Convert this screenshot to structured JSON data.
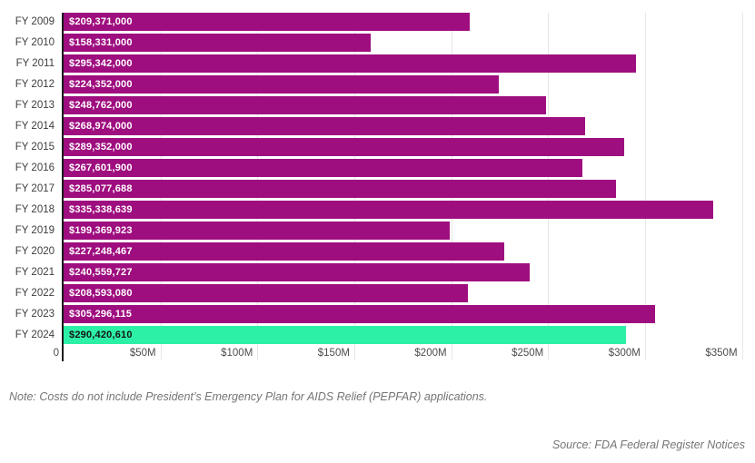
{
  "colors": {
    "bar": "#9E0E7F",
    "highlight": "#2DF0A7",
    "axis": "#1a1a1a",
    "grid": "#e6e6e6",
    "ylabel": "#3d3d3d",
    "tick": "#4d4d4d",
    "value_label": "#ffffff",
    "value_label_highlight": "#141414",
    "note": "#757575"
  },
  "chart_data": {
    "type": "bar",
    "orientation": "horizontal",
    "title": "",
    "xlabel": "",
    "ylabel": "",
    "grid": "vertical",
    "legend": "none",
    "highlight_index": 15,
    "categories": [
      "FY 2009",
      "FY 2010",
      "FY 2011",
      "FY 2012",
      "FY 2013",
      "FY 2014",
      "FY 2015",
      "FY 2016",
      "FY 2017",
      "FY 2018",
      "FY 2019",
      "FY 2020",
      "FY 2021",
      "FY 2022",
      "FY 2023",
      "FY 2024"
    ],
    "values": [
      209371000,
      158331000,
      295342000,
      224352000,
      248762000,
      268974000,
      289352000,
      267601900,
      285077688,
      335338639,
      199369923,
      227248467,
      240559727,
      208593080,
      305296115,
      290420610
    ],
    "value_labels": [
      "$209,371,000",
      "$158,331,000",
      "$295,342,000",
      "$224,352,000",
      "$248,762,000",
      "$268,974,000",
      "$289,352,000",
      "$267,601,900",
      "$285,077,688",
      "$335,338,639",
      "$199,369,923",
      "$227,248,467",
      "$240,559,727",
      "$208,593,080",
      "$305,296,115",
      "$290,420,610"
    ],
    "xlim": [
      0,
      353500000
    ],
    "xticks": [
      {
        "value": 0,
        "label": "0"
      },
      {
        "value": 50000000,
        "label": "$50M"
      },
      {
        "value": 100000000,
        "label": "$100M"
      },
      {
        "value": 150000000,
        "label": "$150M"
      },
      {
        "value": 200000000,
        "label": "$200M"
      },
      {
        "value": 250000000,
        "label": "$250M"
      },
      {
        "value": 300000000,
        "label": "$300M"
      },
      {
        "value": 350000000,
        "label": "$350M"
      }
    ]
  },
  "note": "Note: Costs do not include President’s Emergency Plan for AIDS Relief (PEPFAR) applications.",
  "source": "Source: FDA Federal Register Notices"
}
